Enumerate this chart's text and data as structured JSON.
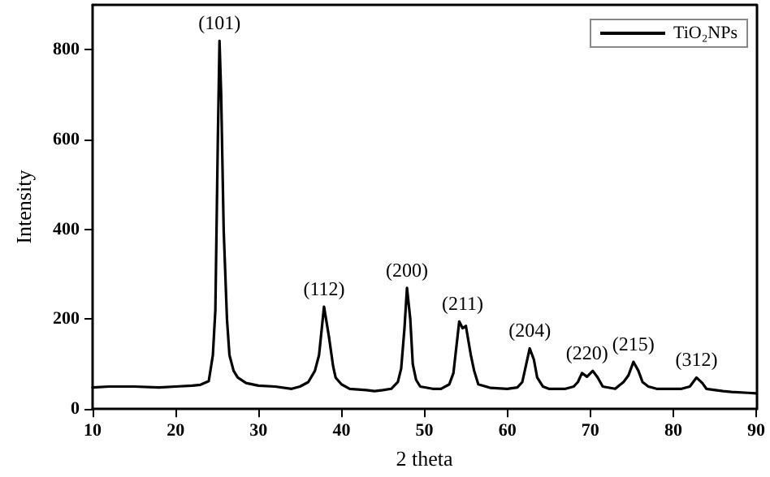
{
  "chart_data": {
    "type": "line",
    "xlabel": "2 theta",
    "ylabel": "Intensity",
    "xlim": [
      10,
      90
    ],
    "ylim": [
      0,
      900
    ],
    "xticks": [
      10,
      20,
      30,
      40,
      50,
      60,
      70,
      80,
      90
    ],
    "yticks": [
      0,
      200,
      400,
      600,
      800
    ],
    "legend": "top right",
    "grid": false,
    "marker": "none",
    "line_style": "solid",
    "series": [
      {
        "name": "TiO₂NPs",
        "color": "#000000",
        "x": [
          10,
          12,
          15,
          18,
          20,
          22,
          23,
          24,
          24.5,
          24.8,
          25.1,
          25.3,
          25.5,
          25.8,
          26.2,
          26.5,
          27,
          27.5,
          28.5,
          30,
          32,
          34,
          35,
          36,
          36.8,
          37.3,
          37.9,
          38.5,
          39,
          39.3,
          40,
          41,
          43,
          44,
          45,
          46,
          46.8,
          47.2,
          47.6,
          47.9,
          48.3,
          48.6,
          49,
          49.5,
          51,
          52,
          53,
          53.5,
          54.2,
          54.6,
          55,
          55.6,
          56,
          56.5,
          58,
          60,
          61.2,
          61.8,
          62.7,
          63.2,
          63.6,
          64.3,
          65,
          67,
          68,
          68.5,
          69,
          69.6,
          70.3,
          70.9,
          71.5,
          73,
          74,
          74.6,
          75.2,
          75.8,
          76.3,
          77,
          78,
          80,
          81,
          82,
          82.8,
          83.5,
          84,
          86,
          87,
          89,
          90
        ],
        "values": [
          48,
          50,
          50,
          48,
          50,
          52,
          54,
          62,
          120,
          220,
          600,
          820,
          700,
          400,
          200,
          120,
          85,
          70,
          58,
          52,
          50,
          45,
          50,
          60,
          85,
          120,
          228,
          160,
          95,
          70,
          55,
          45,
          42,
          40,
          42,
          45,
          60,
          90,
          180,
          270,
          200,
          100,
          65,
          50,
          45,
          45,
          55,
          80,
          195,
          180,
          185,
          120,
          85,
          55,
          47,
          45,
          48,
          60,
          135,
          110,
          70,
          50,
          45,
          45,
          50,
          60,
          80,
          72,
          85,
          70,
          50,
          45,
          60,
          75,
          105,
          85,
          60,
          50,
          45,
          45,
          45,
          50,
          70,
          58,
          45,
          40,
          38,
          36,
          35
        ]
      }
    ],
    "annotations": [
      {
        "text": "(101)",
        "x": 25.3,
        "y": 820
      },
      {
        "text": "(112)",
        "x": 37.9,
        "y": 228
      },
      {
        "text": "(200)",
        "x": 47.9,
        "y": 270
      },
      {
        "text": "(211)",
        "x": 54.6,
        "y": 195
      },
      {
        "text": "(204)",
        "x": 62.7,
        "y": 135
      },
      {
        "text": "(220)",
        "x": 69.6,
        "y": 85
      },
      {
        "text": "(215)",
        "x": 75.2,
        "y": 105
      },
      {
        "text": "(312)",
        "x": 82.8,
        "y": 70
      }
    ]
  }
}
